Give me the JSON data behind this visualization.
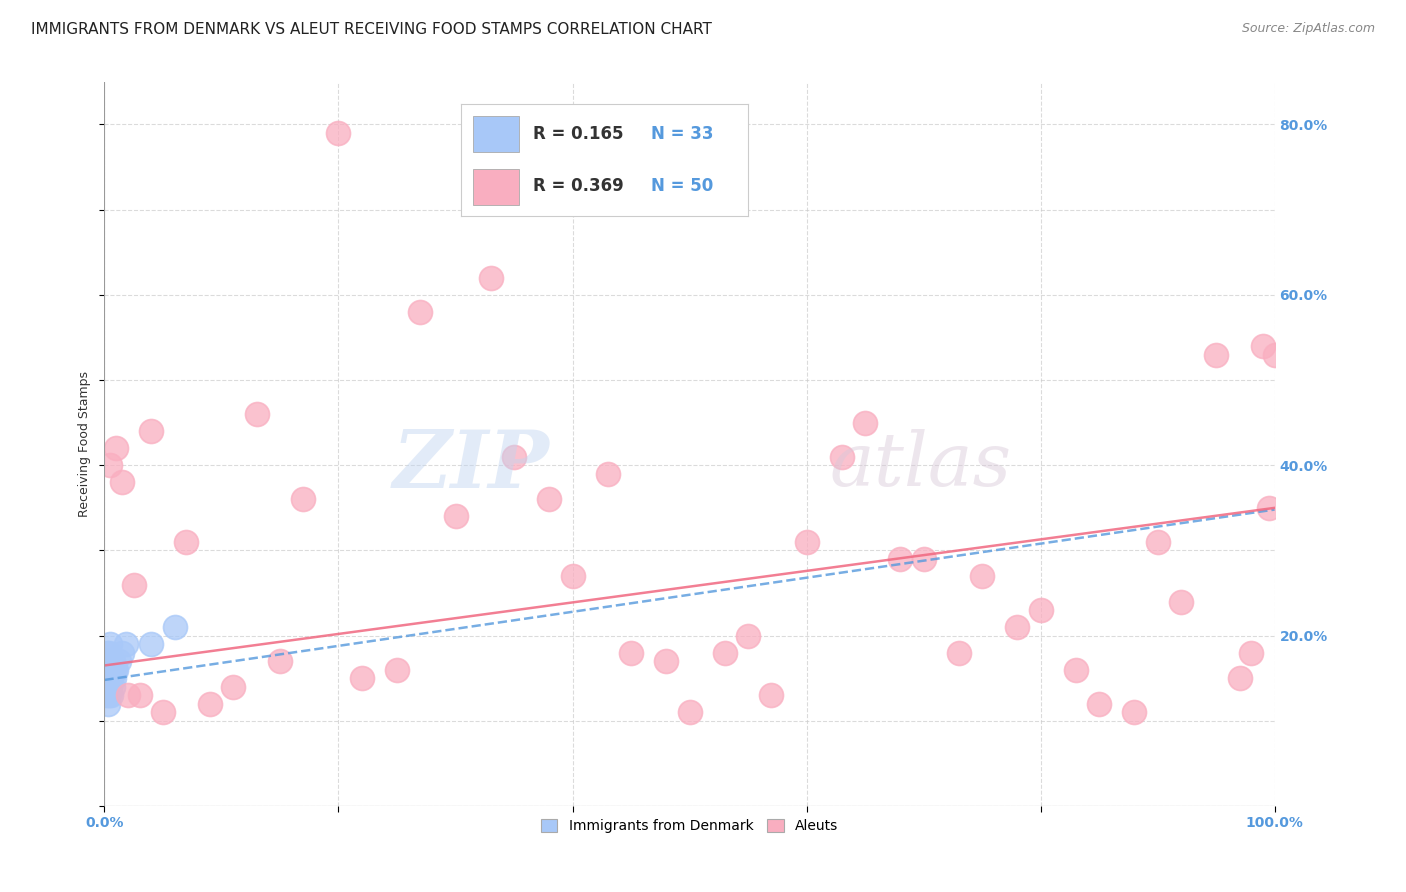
{
  "title": "IMMIGRANTS FROM DENMARK VS ALEUT RECEIVING FOOD STAMPS CORRELATION CHART",
  "source": "Source: ZipAtlas.com",
  "ylabel": "Receiving Food Stamps",
  "xlim": [
    0.0,
    1.0
  ],
  "ylim": [
    0.0,
    0.85
  ],
  "legend_r_denmark": "0.165",
  "legend_n_denmark": "33",
  "legend_r_aleut": "0.369",
  "legend_n_aleut": "50",
  "denmark_color": "#a8c8f8",
  "aleut_color": "#f9aec0",
  "denmark_line_color": "#5599dd",
  "aleut_line_color": "#f06880",
  "background_color": "#ffffff",
  "tick_color": "#5599dd",
  "grid_color": "#cccccc",
  "title_fontsize": 11,
  "axis_label_fontsize": 9,
  "tick_fontsize": 10,
  "denmark_scatter_x": [
    0.001,
    0.001,
    0.001,
    0.002,
    0.002,
    0.002,
    0.002,
    0.003,
    0.003,
    0.003,
    0.003,
    0.003,
    0.004,
    0.004,
    0.004,
    0.004,
    0.005,
    0.005,
    0.005,
    0.005,
    0.006,
    0.006,
    0.006,
    0.007,
    0.007,
    0.008,
    0.009,
    0.01,
    0.012,
    0.015,
    0.018,
    0.04,
    0.06
  ],
  "denmark_scatter_y": [
    0.13,
    0.15,
    0.16,
    0.14,
    0.16,
    0.17,
    0.18,
    0.12,
    0.14,
    0.15,
    0.16,
    0.17,
    0.13,
    0.14,
    0.15,
    0.18,
    0.14,
    0.16,
    0.17,
    0.19,
    0.13,
    0.15,
    0.16,
    0.14,
    0.17,
    0.15,
    0.16,
    0.16,
    0.17,
    0.18,
    0.19,
    0.19,
    0.21
  ],
  "aleut_scatter_x": [
    0.005,
    0.01,
    0.015,
    0.02,
    0.025,
    0.03,
    0.04,
    0.05,
    0.07,
    0.09,
    0.11,
    0.13,
    0.15,
    0.17,
    0.2,
    0.22,
    0.25,
    0.27,
    0.3,
    0.33,
    0.35,
    0.38,
    0.4,
    0.43,
    0.45,
    0.48,
    0.5,
    0.53,
    0.55,
    0.57,
    0.6,
    0.63,
    0.65,
    0.68,
    0.7,
    0.73,
    0.75,
    0.78,
    0.8,
    0.83,
    0.85,
    0.88,
    0.9,
    0.92,
    0.95,
    0.97,
    0.98,
    0.99,
    0.995,
    1.0
  ],
  "aleut_scatter_y": [
    0.4,
    0.42,
    0.38,
    0.13,
    0.26,
    0.13,
    0.44,
    0.11,
    0.31,
    0.12,
    0.14,
    0.46,
    0.17,
    0.36,
    0.79,
    0.15,
    0.16,
    0.58,
    0.34,
    0.62,
    0.41,
    0.36,
    0.27,
    0.39,
    0.18,
    0.17,
    0.11,
    0.18,
    0.2,
    0.13,
    0.31,
    0.41,
    0.45,
    0.29,
    0.29,
    0.18,
    0.27,
    0.21,
    0.23,
    0.16,
    0.12,
    0.11,
    0.31,
    0.24,
    0.53,
    0.15,
    0.18,
    0.54,
    0.35,
    0.53
  ],
  "dk_line_x0": 0.0,
  "dk_line_y0": 0.148,
  "dk_line_x1": 1.0,
  "dk_line_y1": 0.348,
  "al_line_x0": 0.0,
  "al_line_y0": 0.165,
  "al_line_x1": 1.0,
  "al_line_y1": 0.35
}
